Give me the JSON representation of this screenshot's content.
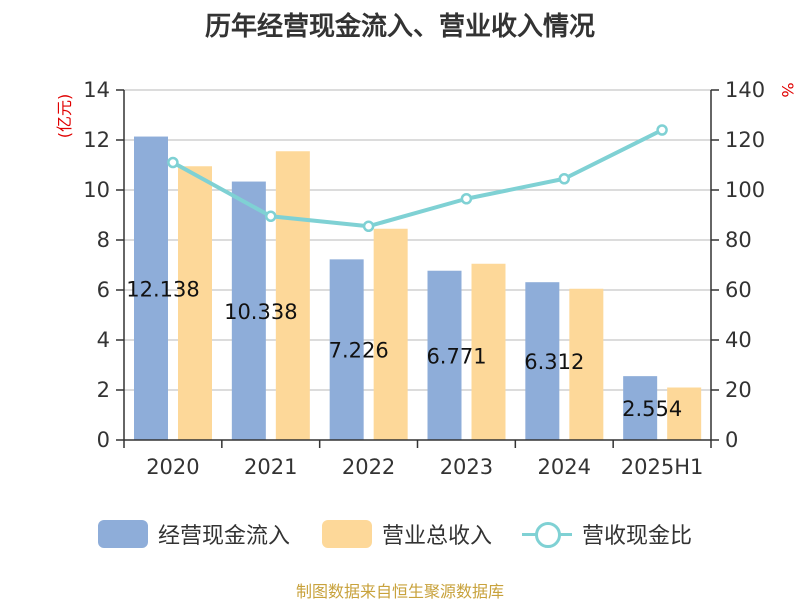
{
  "title": "历年经营现金流入、营业收入情况",
  "source": "制图数据来自恒生聚源数据库",
  "colors": {
    "cash": "#8eadd9",
    "revenue": "#fdd899",
    "ratio": "#7fd1d4",
    "axis": "#333333",
    "grid": "#c8c8c8",
    "unit": "#e00000"
  },
  "chart_data": {
    "type": "bar",
    "title": "历年经营现金流入、营业收入情况",
    "categories": [
      "2020",
      "2021",
      "2022",
      "2023",
      "2024",
      "2025H1"
    ],
    "ylabel": "(亿元)",
    "y2label": "%",
    "ylim": [
      0,
      14
    ],
    "y2lim": [
      0,
      140
    ],
    "yticks": [
      "0",
      "2",
      "4",
      "6",
      "8",
      "10",
      "12",
      "14"
    ],
    "y2ticks": [
      "0",
      "20",
      "40",
      "60",
      "80",
      "100",
      "120",
      "140"
    ],
    "grid": true,
    "legend_position": "bottom",
    "series": [
      {
        "name": "经营现金流入",
        "type": "bar",
        "axis": "left",
        "values": [
          12.138,
          10.338,
          7.226,
          6.771,
          6.312,
          2.554
        ],
        "labels": [
          "12.138",
          "10.338",
          "7.226",
          "6.771",
          "6.312",
          "2.554"
        ]
      },
      {
        "name": "营业总收入",
        "type": "bar",
        "axis": "left",
        "values": [
          10.95,
          11.55,
          8.45,
          7.05,
          6.05,
          2.1
        ]
      },
      {
        "name": "营收现金比",
        "type": "line",
        "axis": "right",
        "values": [
          111,
          89.5,
          85.5,
          96.5,
          104.5,
          124
        ]
      }
    ]
  }
}
